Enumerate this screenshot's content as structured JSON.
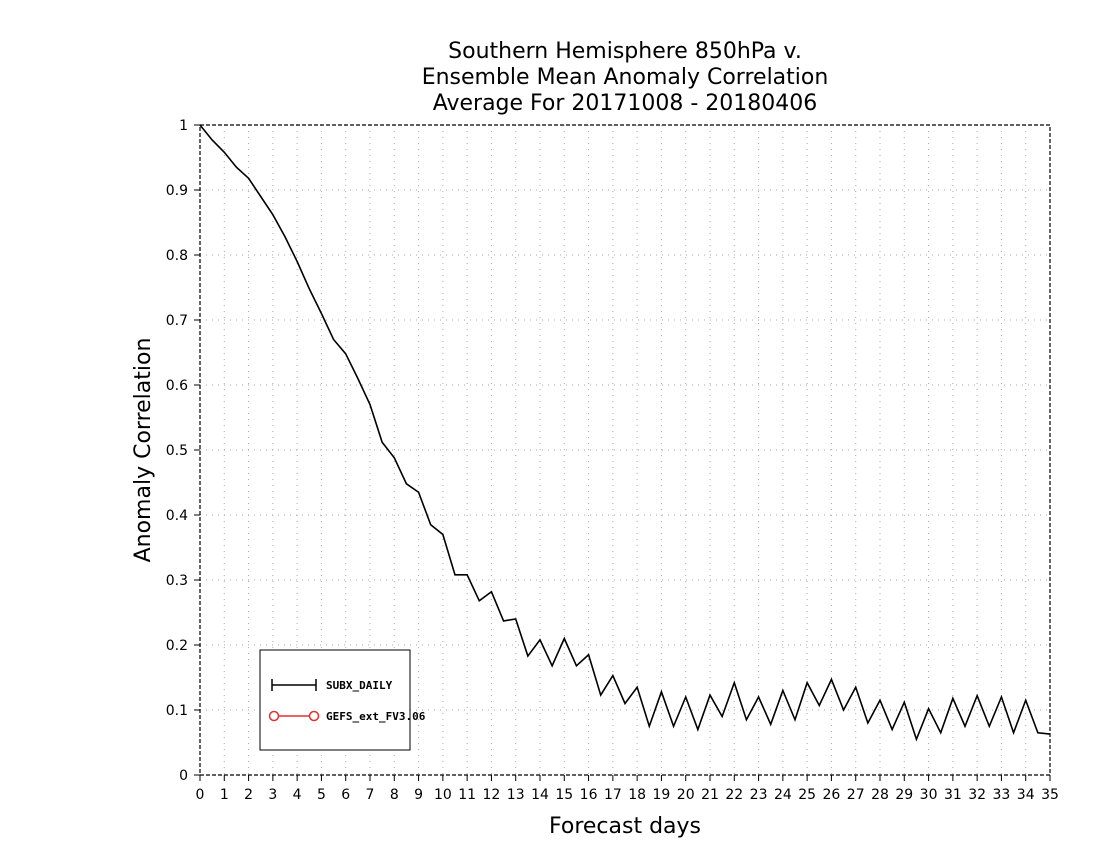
{
  "chart_data": {
    "type": "line",
    "title": [
      "Southern Hemisphere 850hPa v.",
      "Ensemble Mean Anomaly Correlation",
      "Average For 20171008 - 20180406"
    ],
    "xlabel": "Forecast days",
    "ylabel": "Anomaly Correlation",
    "xlim": [
      0,
      35
    ],
    "ylim": [
      0,
      1
    ],
    "x_ticks": [
      "0",
      "1",
      "2",
      "3",
      "4",
      "5",
      "6",
      "7",
      "8",
      "9",
      "10",
      "11",
      "12",
      "13",
      "14",
      "15",
      "16",
      "17",
      "18",
      "19",
      "20",
      "21",
      "22",
      "23",
      "24",
      "25",
      "26",
      "27",
      "28",
      "29",
      "30",
      "31",
      "32",
      "33",
      "34",
      "35"
    ],
    "y_ticks": [
      "0",
      "0.1",
      "0.2",
      "0.3",
      "0.4",
      "0.5",
      "0.6",
      "0.7",
      "0.8",
      "0.9",
      "1"
    ],
    "grid": true,
    "legend_position": "bottom-left",
    "series": [
      {
        "name": "SUBX_DAILY",
        "color": "#000000",
        "marker": "plus",
        "x": [
          0,
          0.5,
          1,
          1.5,
          2,
          2.5,
          3,
          3.5,
          4,
          4.5,
          5,
          5.5,
          6,
          6.5,
          7,
          7.5,
          8,
          8.5,
          9,
          9.5,
          10,
          10.5,
          11,
          11.5,
          12,
          12.5,
          13,
          13.5,
          14,
          14.5,
          15,
          15.5,
          16,
          16.5,
          17,
          17.5,
          18,
          18.5,
          19,
          19.5,
          20,
          20.5,
          21,
          21.5,
          22,
          22.5,
          23,
          23.5,
          24,
          24.5,
          25,
          25.5,
          26,
          26.5,
          27,
          27.5,
          28,
          28.5,
          29,
          29.5,
          30,
          30.5,
          31,
          31.5,
          32,
          32.5,
          33,
          33.5,
          34,
          34.5,
          35
        ],
        "values": [
          1.0,
          0.977,
          0.958,
          0.935,
          0.918,
          0.89,
          0.862,
          0.828,
          0.79,
          0.748,
          0.71,
          0.67,
          0.648,
          0.61,
          0.57,
          0.512,
          0.488,
          0.448,
          0.435,
          0.385,
          0.37,
          0.308,
          0.308,
          0.268,
          0.282,
          0.237,
          0.24,
          0.183,
          0.208,
          0.168,
          0.21,
          0.168,
          0.185,
          0.123,
          0.153,
          0.11,
          0.135,
          0.075,
          0.128,
          0.075,
          0.12,
          0.07,
          0.123,
          0.09,
          0.142,
          0.085,
          0.12,
          0.078,
          0.13,
          0.085,
          0.142,
          0.107,
          0.147,
          0.1,
          0.135,
          0.08,
          0.115,
          0.07,
          0.112,
          0.055,
          0.102,
          0.065,
          0.118,
          0.075,
          0.122,
          0.075,
          0.12,
          0.065,
          0.115,
          0.065,
          0.063
        ]
      },
      {
        "name": "GEFS_ext_FV3.06",
        "color": "#e03030",
        "marker": "circle",
        "x": [],
        "values": []
      }
    ]
  }
}
